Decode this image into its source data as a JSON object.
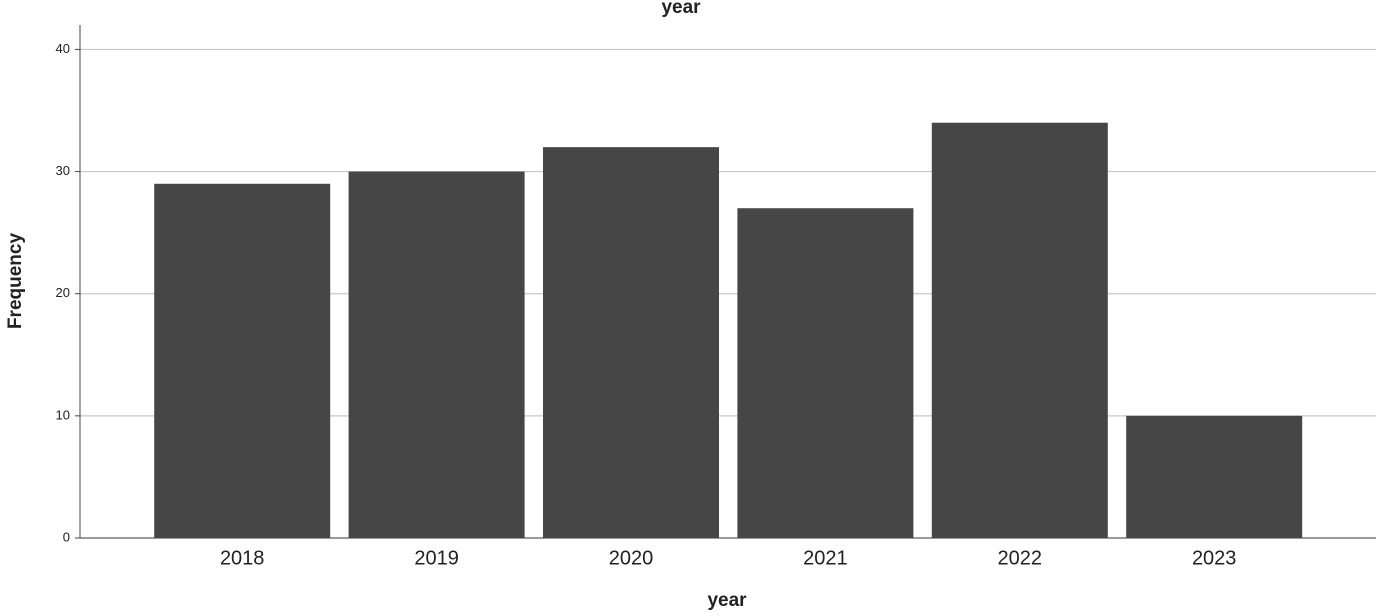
{
  "chart_data": {
    "type": "bar",
    "title": "year",
    "x_label": "year",
    "y_label": "Frequency",
    "categories": [
      "2018",
      "2019",
      "2020",
      "2021",
      "2022",
      "2023"
    ],
    "values": [
      29,
      30,
      32,
      27,
      34,
      10
    ],
    "color": "#464646",
    "ylim": [
      0,
      42
    ],
    "yticks": [
      0,
      10,
      20,
      30,
      40
    ],
    "grid": true
  }
}
